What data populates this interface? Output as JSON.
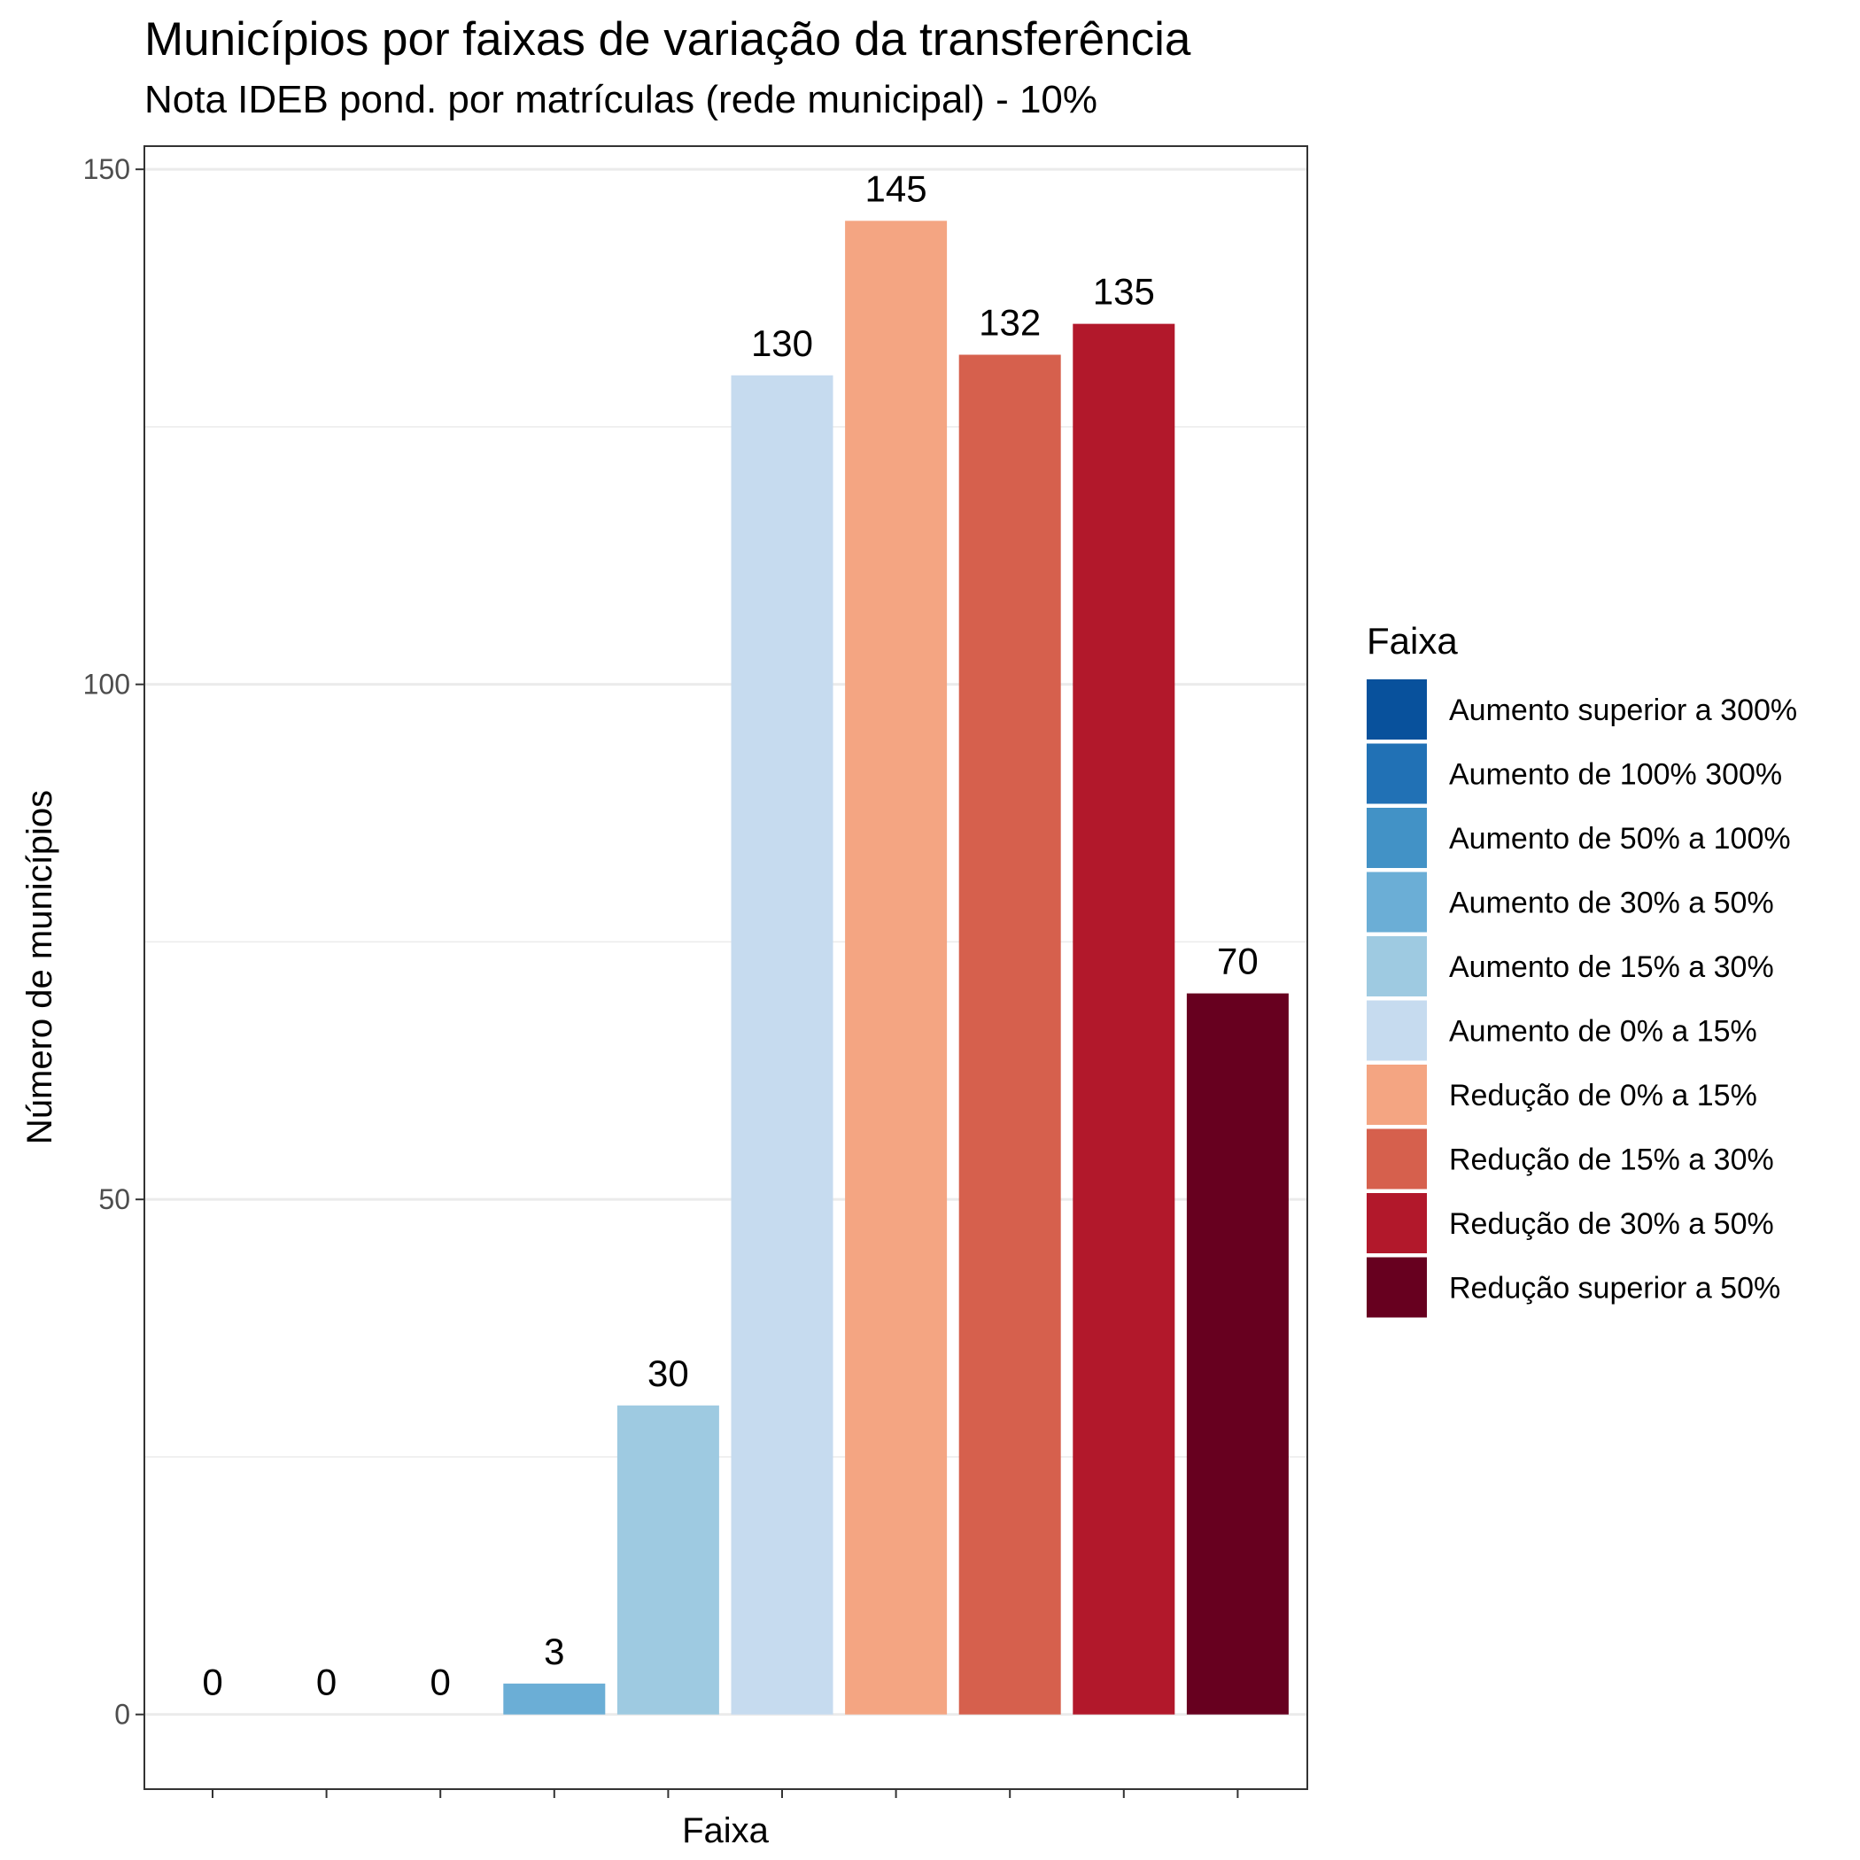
{
  "title": "Municípios por faixas de variação da transferência",
  "subtitle": "Nota IDEB pond. por matrículas (rede municipal) - 10%",
  "chart_data": {
    "type": "bar",
    "title": "Municípios por faixas de variação da transferência",
    "subtitle": "Nota IDEB pond. por matrículas (rede municipal) - 10%",
    "xlabel": "Faixa",
    "ylabel": "Número de municípios",
    "categories": [
      "Aumento superior a 300%",
      "Aumento de 100%  300%",
      "Aumento de 50% a 100%",
      "Aumento de 30% a 50%",
      "Aumento de 15% a 30%",
      "Aumento de 0% a 15%",
      "Redução de 0% a 15%",
      "Redução de 15% a 30%",
      "Redução de 30% a 50%",
      "Redução superior a 50%"
    ],
    "values": [
      0,
      0,
      0,
      3,
      30,
      130,
      145,
      132,
      135,
      70
    ],
    "data_labels": [
      "0",
      "0",
      "0",
      "3",
      "30",
      "130",
      "145",
      "132",
      "135",
      "70"
    ],
    "colors": [
      "#08519c",
      "#2171b5",
      "#4292c6",
      "#6baed6",
      "#9ecae1",
      "#c6dbef",
      "#f4a582",
      "#d6604d",
      "#b2182b",
      "#67001f"
    ],
    "y_ticks": [
      0,
      50,
      100,
      150
    ],
    "y_tick_labels": [
      "0",
      "50",
      "100",
      "150"
    ],
    "ylim": [
      -7.25,
      152.25
    ],
    "grid": true,
    "x_tick_labels_shown": false,
    "legend": {
      "title": "Faixa",
      "position": "right",
      "entries": [
        "Aumento superior a 300%",
        "Aumento de 100%  300%",
        "Aumento de 50% a 100%",
        "Aumento de 30% a 50%",
        "Aumento de 15% a 30%",
        "Aumento de 0% a 15%",
        "Redução de 0% a 15%",
        "Redução de 15% a 30%",
        "Redução de 30% a 50%",
        "Redução superior a 50%"
      ]
    }
  }
}
